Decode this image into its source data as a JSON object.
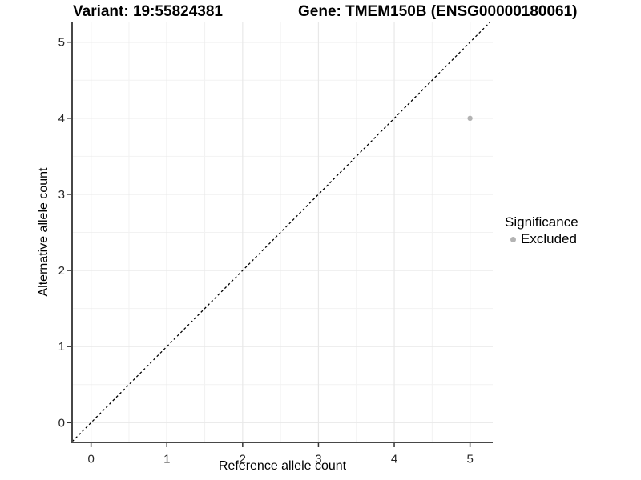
{
  "header": {
    "variant_title": "Variant: 19:55824381",
    "gene_title": "Gene: TMEM150B (ENSG00000180061)"
  },
  "chart_data": {
    "type": "scatter",
    "title": "Variant: 19:55824381   Gene: TMEM150B (ENSG00000180061)",
    "xlabel": "Reference allele count",
    "ylabel": "Alternative allele count",
    "xlim": [
      -0.25,
      5.3
    ],
    "ylim": [
      -0.26,
      5.26
    ],
    "x_ticks": [
      0,
      1,
      2,
      3,
      4,
      5
    ],
    "y_ticks": [
      0,
      1,
      2,
      3,
      4,
      5
    ],
    "x_minor_ticks": [
      0.5,
      1.5,
      2.5,
      3.5,
      4.5
    ],
    "y_minor_ticks": [
      0.5,
      1.5,
      2.5,
      3.5,
      4.5
    ],
    "grid": "major-and-minor",
    "series": [
      {
        "name": "Excluded",
        "color": "#b3b3b3",
        "points": [
          {
            "x": 5,
            "y": 4
          }
        ]
      }
    ],
    "reference_line": {
      "type": "identity y=x",
      "style": "dashed",
      "color": "#000000"
    },
    "legend": {
      "position": "right",
      "title": "Significance",
      "entries": [
        {
          "label": "Excluded",
          "color": "#b3b3b3"
        }
      ]
    }
  },
  "colors": {
    "axis_line": "#474747",
    "tick_mark": "#333333",
    "tick_label": "#262626",
    "grid_major": "#e8e8e8",
    "grid_minor": "#f2f2f2",
    "point": "#b3b3b3",
    "background": "#ffffff"
  }
}
